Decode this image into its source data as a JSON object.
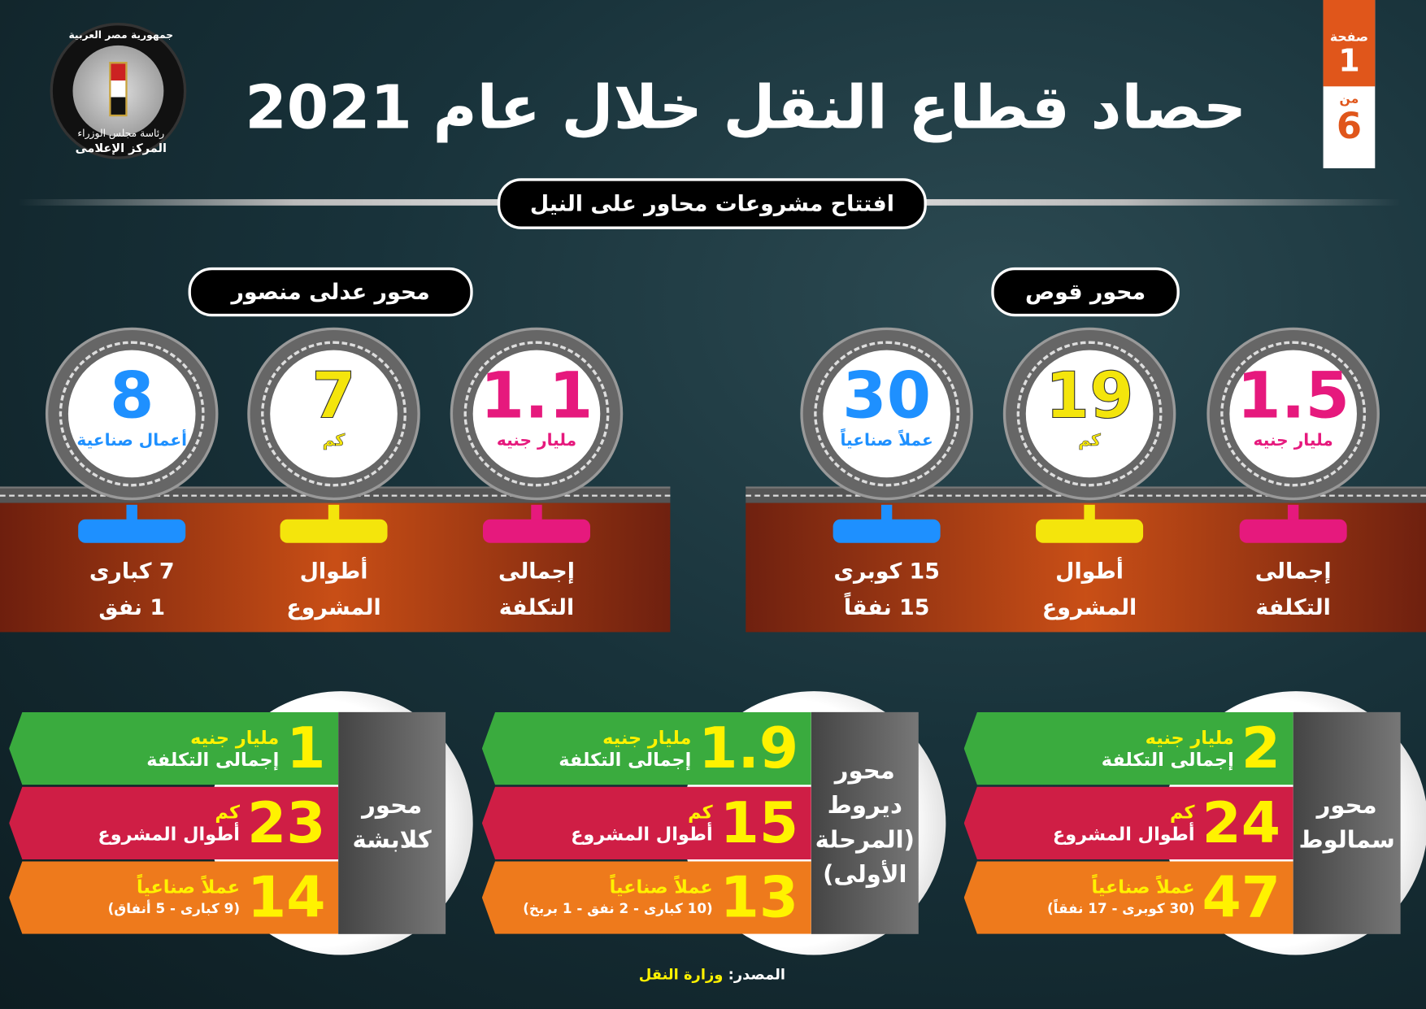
{
  "logo": {
    "top_text": "جمهورية مصر العربية",
    "middle_text": "رئاسة مجلس الوزراء",
    "bottom_text": "المركز الإعلامى"
  },
  "page_badge": {
    "page_label": "صفحة",
    "page": "1",
    "of_label": "من",
    "total": "6"
  },
  "title": "حصاد قطاع النقل خلال عام 2021",
  "subtitle": "افتتاح مشروعات محاور على النيل",
  "colors": {
    "cost": "#e6197d",
    "length": "#f4e50c",
    "works": "#1e90ff",
    "green": "#3aab3e",
    "red": "#cf1e45",
    "orange": "#ee7a1c",
    "accent": "#e0561b"
  },
  "axes_top": [
    {
      "name": "محور قوص",
      "stats": [
        {
          "value": "1.5",
          "unit": "مليار جنيه",
          "label1": "إجمالى",
          "label2": "التكلفة"
        },
        {
          "value": "19",
          "unit": "كم",
          "label1": "أطوال",
          "label2": "المشروع"
        },
        {
          "value": "30",
          "unit": "عملاً صناعياً",
          "label1": "15 كوبرى",
          "label2": "15 نفقاً"
        }
      ]
    },
    {
      "name": "محور عدلى منصور",
      "stats": [
        {
          "value": "1.1",
          "unit": "مليار جنيه",
          "label1": "إجمالى",
          "label2": "التكلفة"
        },
        {
          "value": "7",
          "unit": "كم",
          "label1": "أطوال",
          "label2": "المشروع"
        },
        {
          "value": "8",
          "unit": "أعمال صناعية",
          "label1": "7 كبارى",
          "label2": "1 نفق"
        }
      ]
    }
  ],
  "axes_bottom": [
    {
      "name": "محور سمالوط",
      "cost": "2",
      "cost_unit": "مليار جنيه",
      "cost_label": "إجمالى التكلفة",
      "length": "24",
      "length_unit": "كم",
      "length_label": "أطوال المشروع",
      "works": "47",
      "works_unit": "عملاً صناعياً",
      "works_detail": "(30 كوبرى - 17 نفقاً)"
    },
    {
      "name": "محور ديروط (المرحلة الأولى)",
      "cost": "1.9",
      "cost_unit": "مليار جنيه",
      "cost_label": "إجمالى التكلفة",
      "length": "15",
      "length_unit": "كم",
      "length_label": "أطوال المشروع",
      "works": "13",
      "works_unit": "عملاً صناعياً",
      "works_detail": "(10 كبارى - 2 نفق - 1 بربخ)"
    },
    {
      "name": "محور كلابشة",
      "cost": "1",
      "cost_unit": "مليار جنيه",
      "cost_label": "إجمالى التكلفة",
      "length": "23",
      "length_unit": "كم",
      "length_label": "أطوال المشروع",
      "works": "14",
      "works_unit": "عملاً صناعياً",
      "works_detail": "(9 كبارى - 5 أنفاق)"
    }
  ],
  "source": {
    "label": "المصدر:",
    "value": "وزارة النقل"
  }
}
